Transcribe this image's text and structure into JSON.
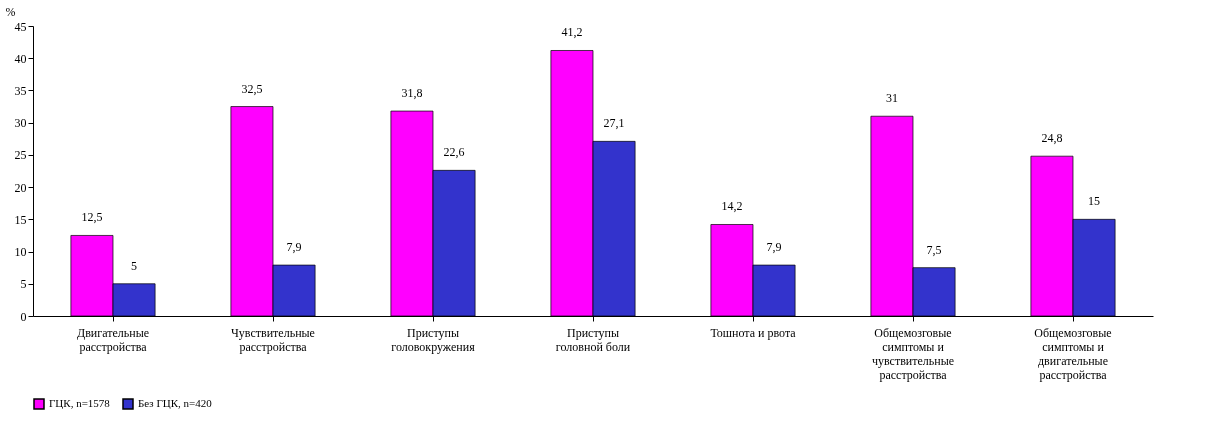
{
  "chart_data": {
    "type": "bar",
    "ylabel": "%",
    "categories": [
      "Двигательные расстройства",
      "Чувствительные расстройства",
      "Приступы головокружения",
      "Приступы головной боли",
      "Тошнота и рвота",
      "Общемозговые симптомы и чувствительные расстройства",
      "Общемозговые симптомы и двигательные расстройства"
    ],
    "series": [
      {
        "name": "ГЦК, n=1578",
        "color": "#ff00ff",
        "values": [
          12.5,
          32.5,
          31.8,
          41.2,
          14.2,
          31,
          24.8
        ],
        "value_labels": [
          "12,5",
          "32,5",
          "31,8",
          "41,2",
          "14,2",
          "31",
          "24,8"
        ]
      },
      {
        "name": "Без ГЦК, n=420",
        "color": "#3333cc",
        "values": [
          5,
          7.9,
          22.6,
          27.1,
          7.9,
          7.5,
          15
        ],
        "value_labels": [
          "5",
          "7,9",
          "22,6",
          "27,1",
          "7,9",
          "7,5",
          "15"
        ]
      }
    ],
    "ylim": [
      0,
      45
    ],
    "yticks": [
      0,
      5,
      10,
      15,
      20,
      25,
      30,
      35,
      40,
      45
    ],
    "grid": false,
    "legend": "bottom"
  }
}
